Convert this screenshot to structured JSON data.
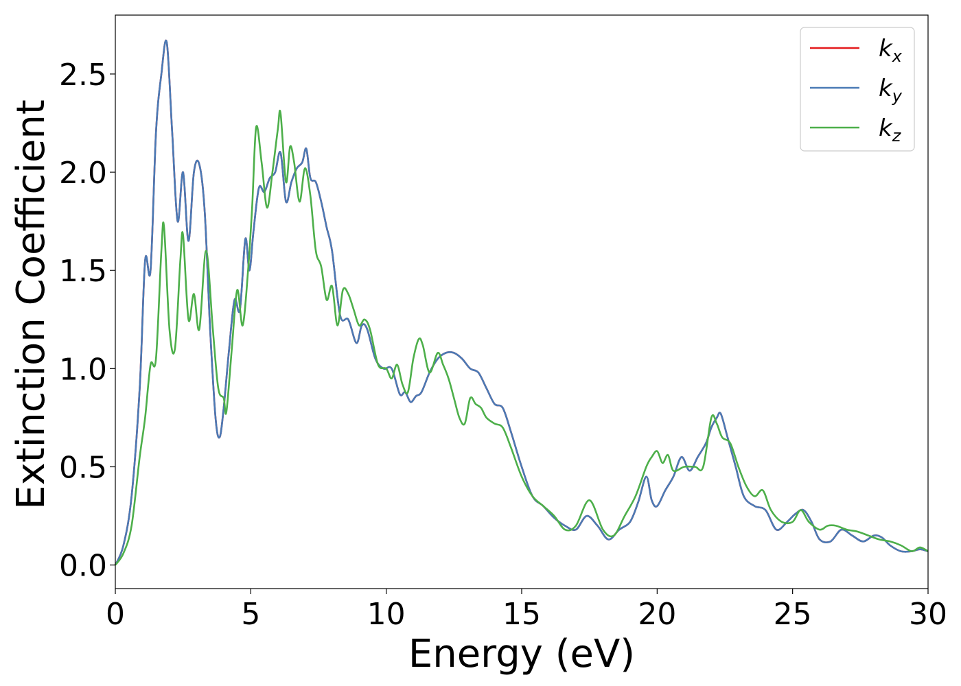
{
  "chart_data": {
    "type": "line",
    "xlabel": "Energy (eV)",
    "ylabel": "Extinction Coefficient",
    "xlim": [
      0,
      30
    ],
    "ylim": [
      -0.12,
      2.8
    ],
    "xticks": [
      0,
      5,
      10,
      15,
      20,
      25,
      30
    ],
    "xtick_labels": [
      "0",
      "5",
      "10",
      "15",
      "20",
      "25",
      "30"
    ],
    "yticks": [
      0.0,
      0.5,
      1.0,
      1.5,
      2.0,
      2.5
    ],
    "ytick_labels": [
      "0.0",
      "0.5",
      "1.0",
      "1.5",
      "2.0",
      "2.5"
    ],
    "grid": false,
    "legend_position": "top-right",
    "series": [
      {
        "name": "k",
        "subscript": "x",
        "color": "#e41a1c",
        "x": [
          0,
          0.3,
          0.6,
          0.9,
          1.1,
          1.3,
          1.5,
          1.7,
          1.9,
          2.1,
          2.3,
          2.5,
          2.7,
          2.9,
          3.1,
          3.3,
          3.5,
          3.7,
          3.85,
          4.0,
          4.2,
          4.4,
          4.6,
          4.8,
          4.95,
          5.1,
          5.3,
          5.5,
          5.7,
          5.9,
          6.1,
          6.3,
          6.5,
          6.7,
          6.9,
          7.05,
          7.2,
          7.4,
          7.6,
          7.8,
          8.0,
          8.3,
          8.6,
          8.9,
          9.1,
          9.3,
          9.6,
          9.9,
          10.2,
          10.5,
          10.7,
          10.9,
          11.1,
          11.3,
          11.6,
          11.9,
          12.2,
          12.5,
          12.8,
          13.1,
          13.4,
          13.7,
          14.0,
          14.3,
          14.6,
          15.0,
          15.4,
          15.8,
          16.2,
          16.6,
          17.0,
          17.4,
          17.8,
          18.2,
          18.6,
          19.0,
          19.3,
          19.6,
          19.8,
          20.0,
          20.3,
          20.6,
          20.9,
          21.2,
          21.5,
          21.8,
          22.0,
          22.2,
          22.35,
          22.6,
          22.9,
          23.2,
          23.6,
          24.0,
          24.4,
          24.8,
          25.1,
          25.4,
          25.7,
          26.0,
          26.4,
          26.8,
          27.2,
          27.6,
          28.0,
          28.3,
          28.6,
          29.0,
          29.4,
          29.7,
          30.0
        ],
        "y": [
          0.0,
          0.1,
          0.35,
          0.9,
          1.55,
          1.5,
          2.2,
          2.5,
          2.66,
          2.2,
          1.75,
          2.0,
          1.65,
          2.0,
          2.04,
          1.8,
          1.2,
          0.75,
          0.65,
          0.8,
          1.1,
          1.35,
          1.3,
          1.66,
          1.5,
          1.7,
          1.92,
          1.9,
          1.97,
          2.0,
          2.1,
          1.85,
          1.95,
          2.02,
          2.05,
          2.12,
          1.97,
          1.95,
          1.85,
          1.72,
          1.6,
          1.27,
          1.25,
          1.13,
          1.22,
          1.2,
          1.05,
          1.0,
          1.0,
          0.87,
          0.88,
          0.83,
          0.86,
          0.88,
          0.98,
          1.05,
          1.08,
          1.08,
          1.05,
          1.0,
          0.98,
          0.9,
          0.82,
          0.8,
          0.68,
          0.5,
          0.35,
          0.3,
          0.24,
          0.2,
          0.18,
          0.25,
          0.2,
          0.13,
          0.18,
          0.22,
          0.32,
          0.45,
          0.33,
          0.3,
          0.38,
          0.45,
          0.55,
          0.48,
          0.55,
          0.62,
          0.7,
          0.75,
          0.77,
          0.65,
          0.5,
          0.35,
          0.3,
          0.28,
          0.18,
          0.22,
          0.26,
          0.28,
          0.22,
          0.13,
          0.12,
          0.18,
          0.15,
          0.12,
          0.15,
          0.14,
          0.1,
          0.07,
          0.07,
          0.08,
          0.07
        ]
      },
      {
        "name": "k",
        "subscript": "y",
        "color": "#4a7ab5",
        "x": [
          0,
          0.3,
          0.6,
          0.9,
          1.1,
          1.3,
          1.5,
          1.7,
          1.9,
          2.1,
          2.3,
          2.5,
          2.7,
          2.9,
          3.1,
          3.3,
          3.5,
          3.7,
          3.85,
          4.0,
          4.2,
          4.4,
          4.6,
          4.8,
          4.95,
          5.1,
          5.3,
          5.5,
          5.7,
          5.9,
          6.1,
          6.3,
          6.5,
          6.7,
          6.9,
          7.05,
          7.2,
          7.4,
          7.6,
          7.8,
          8.0,
          8.3,
          8.6,
          8.9,
          9.1,
          9.3,
          9.6,
          9.9,
          10.2,
          10.5,
          10.7,
          10.9,
          11.1,
          11.3,
          11.6,
          11.9,
          12.2,
          12.5,
          12.8,
          13.1,
          13.4,
          13.7,
          14.0,
          14.3,
          14.6,
          15.0,
          15.4,
          15.8,
          16.2,
          16.6,
          17.0,
          17.4,
          17.8,
          18.2,
          18.6,
          19.0,
          19.3,
          19.6,
          19.8,
          20.0,
          20.3,
          20.6,
          20.9,
          21.2,
          21.5,
          21.8,
          22.0,
          22.2,
          22.35,
          22.6,
          22.9,
          23.2,
          23.6,
          24.0,
          24.4,
          24.8,
          25.1,
          25.4,
          25.7,
          26.0,
          26.4,
          26.8,
          27.2,
          27.6,
          28.0,
          28.3,
          28.6,
          29.0,
          29.4,
          29.7,
          30.0
        ],
        "y": [
          0.0,
          0.1,
          0.35,
          0.9,
          1.55,
          1.5,
          2.2,
          2.5,
          2.66,
          2.2,
          1.75,
          2.0,
          1.65,
          2.0,
          2.04,
          1.8,
          1.2,
          0.75,
          0.65,
          0.8,
          1.1,
          1.35,
          1.3,
          1.66,
          1.5,
          1.7,
          1.92,
          1.9,
          1.97,
          2.0,
          2.1,
          1.85,
          1.95,
          2.02,
          2.05,
          2.12,
          1.97,
          1.95,
          1.85,
          1.72,
          1.6,
          1.27,
          1.25,
          1.13,
          1.22,
          1.2,
          1.05,
          1.0,
          1.0,
          0.87,
          0.88,
          0.83,
          0.86,
          0.88,
          0.98,
          1.05,
          1.08,
          1.08,
          1.05,
          1.0,
          0.98,
          0.9,
          0.82,
          0.8,
          0.68,
          0.5,
          0.35,
          0.3,
          0.24,
          0.2,
          0.18,
          0.25,
          0.2,
          0.13,
          0.18,
          0.22,
          0.32,
          0.45,
          0.33,
          0.3,
          0.38,
          0.45,
          0.55,
          0.48,
          0.55,
          0.62,
          0.7,
          0.75,
          0.77,
          0.65,
          0.5,
          0.35,
          0.3,
          0.28,
          0.18,
          0.22,
          0.26,
          0.28,
          0.22,
          0.13,
          0.12,
          0.18,
          0.15,
          0.12,
          0.15,
          0.14,
          0.1,
          0.07,
          0.07,
          0.08,
          0.07
        ]
      },
      {
        "name": "k",
        "subscript": "z",
        "color": "#4daf4a",
        "x": [
          0,
          0.3,
          0.6,
          0.9,
          1.1,
          1.3,
          1.5,
          1.7,
          1.8,
          2.0,
          2.2,
          2.4,
          2.5,
          2.7,
          2.9,
          3.1,
          3.35,
          3.6,
          3.8,
          4.0,
          4.1,
          4.3,
          4.5,
          4.7,
          4.9,
          5.05,
          5.2,
          5.4,
          5.6,
          5.8,
          6.0,
          6.1,
          6.3,
          6.45,
          6.6,
          6.8,
          7.0,
          7.2,
          7.4,
          7.6,
          7.8,
          8.0,
          8.2,
          8.4,
          8.6,
          8.8,
          9.0,
          9.2,
          9.4,
          9.7,
          10.0,
          10.2,
          10.4,
          10.6,
          10.8,
          11.0,
          11.2,
          11.35,
          11.6,
          11.9,
          12.1,
          12.3,
          12.5,
          12.7,
          12.9,
          13.1,
          13.3,
          13.5,
          13.7,
          14.0,
          14.3,
          14.6,
          15.0,
          15.4,
          15.8,
          16.2,
          16.6,
          17.0,
          17.5,
          18.0,
          18.4,
          18.8,
          19.2,
          19.6,
          19.8,
          20.0,
          20.2,
          20.4,
          20.6,
          21.0,
          21.4,
          21.7,
          22.0,
          22.2,
          22.4,
          22.7,
          23.0,
          23.3,
          23.6,
          23.9,
          24.2,
          24.6,
          25.0,
          25.3,
          25.6,
          26.0,
          26.3,
          26.6,
          27.0,
          27.4,
          27.8,
          28.2,
          28.6,
          29.0,
          29.4,
          29.7,
          30.0
        ],
        "y": [
          0.0,
          0.06,
          0.2,
          0.55,
          0.75,
          1.02,
          1.05,
          1.6,
          1.72,
          1.2,
          1.1,
          1.55,
          1.68,
          1.25,
          1.38,
          1.2,
          1.6,
          1.2,
          0.9,
          0.85,
          0.78,
          1.1,
          1.4,
          1.22,
          1.5,
          1.82,
          2.23,
          2.05,
          1.82,
          2.0,
          2.22,
          2.3,
          1.95,
          2.13,
          2.05,
          1.85,
          2.02,
          1.88,
          1.6,
          1.52,
          1.35,
          1.42,
          1.22,
          1.4,
          1.38,
          1.3,
          1.22,
          1.25,
          1.2,
          1.02,
          1.0,
          0.95,
          1.02,
          0.92,
          0.88,
          1.05,
          1.15,
          1.12,
          0.98,
          1.08,
          1.02,
          0.95,
          0.85,
          0.75,
          0.72,
          0.85,
          0.82,
          0.8,
          0.75,
          0.72,
          0.7,
          0.6,
          0.45,
          0.35,
          0.3,
          0.25,
          0.18,
          0.2,
          0.33,
          0.18,
          0.15,
          0.25,
          0.35,
          0.5,
          0.55,
          0.58,
          0.52,
          0.56,
          0.48,
          0.5,
          0.5,
          0.5,
          0.75,
          0.72,
          0.65,
          0.62,
          0.5,
          0.4,
          0.35,
          0.38,
          0.28,
          0.22,
          0.22,
          0.28,
          0.22,
          0.18,
          0.2,
          0.2,
          0.18,
          0.17,
          0.15,
          0.13,
          0.12,
          0.1,
          0.07,
          0.09,
          0.07
        ]
      }
    ]
  }
}
